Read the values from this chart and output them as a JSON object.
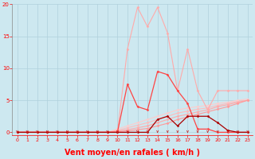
{
  "bg_color": "#cde8f0",
  "grid_color": "#b0d0dc",
  "xlabel": "Vent moyen/en rafales ( km/h )",
  "xlabel_color": "#ff0000",
  "xlabel_fontsize": 7,
  "tick_color": "#ff0000",
  "ylim": [
    -0.5,
    20
  ],
  "xlim": [
    -0.5,
    23.5
  ],
  "yticks": [
    0,
    5,
    10,
    15,
    20
  ],
  "xticks": [
    0,
    1,
    2,
    3,
    4,
    5,
    6,
    7,
    8,
    9,
    10,
    11,
    12,
    13,
    14,
    15,
    16,
    17,
    18,
    19,
    20,
    21,
    22,
    23
  ],
  "fan1": {
    "x": [
      0,
      1,
      2,
      3,
      4,
      5,
      6,
      7,
      8,
      9,
      10,
      11,
      12,
      13,
      14,
      15,
      16,
      17,
      18,
      19,
      20,
      21,
      22,
      23
    ],
    "y": [
      0,
      0,
      0,
      0,
      0,
      0,
      0,
      0,
      0,
      0,
      0.5,
      1.0,
      1.5,
      2.0,
      2.5,
      3.0,
      3.5,
      3.8,
      4.0,
      4.2,
      4.5,
      4.7,
      5.0,
      5.2
    ],
    "color": "#ffcccc",
    "lw": 0.8,
    "marker": "D",
    "ms": 1.5
  },
  "fan2": {
    "x": [
      0,
      1,
      2,
      3,
      4,
      5,
      6,
      7,
      8,
      9,
      10,
      11,
      12,
      13,
      14,
      15,
      16,
      17,
      18,
      19,
      20,
      21,
      22,
      23
    ],
    "y": [
      0,
      0,
      0,
      0,
      0,
      0,
      0,
      0,
      0,
      0,
      0.3,
      0.7,
      1.1,
      1.5,
      2.0,
      2.5,
      3.0,
      3.3,
      3.6,
      3.8,
      4.2,
      4.5,
      4.8,
      5.0
    ],
    "color": "#ffbbbb",
    "lw": 0.8,
    "marker": "D",
    "ms": 1.5
  },
  "fan3": {
    "x": [
      0,
      1,
      2,
      3,
      4,
      5,
      6,
      7,
      8,
      9,
      10,
      11,
      12,
      13,
      14,
      15,
      16,
      17,
      18,
      19,
      20,
      21,
      22,
      23
    ],
    "y": [
      0,
      0,
      0,
      0,
      0,
      0,
      0,
      0,
      0,
      0,
      0.2,
      0.4,
      0.7,
      1.0,
      1.5,
      2.0,
      2.5,
      2.8,
      3.2,
      3.5,
      4.0,
      4.3,
      4.7,
      5.0
    ],
    "color": "#ffaaaa",
    "lw": 0.8,
    "marker": "D",
    "ms": 1.5
  },
  "fan4": {
    "x": [
      0,
      1,
      2,
      3,
      4,
      5,
      6,
      7,
      8,
      9,
      10,
      11,
      12,
      13,
      14,
      15,
      16,
      17,
      18,
      19,
      20,
      21,
      22,
      23
    ],
    "y": [
      0,
      0,
      0,
      0,
      0,
      0,
      0,
      0,
      0,
      0,
      0.1,
      0.2,
      0.4,
      0.6,
      1.0,
      1.4,
      2.0,
      2.4,
      2.8,
      3.2,
      3.6,
      4.0,
      4.5,
      5.0
    ],
    "color": "#ff9999",
    "lw": 0.8,
    "marker": "D",
    "ms": 1.5
  },
  "peak_light": {
    "x": [
      0,
      1,
      2,
      3,
      4,
      5,
      6,
      7,
      8,
      9,
      10,
      11,
      12,
      13,
      14,
      15,
      16,
      17,
      18,
      19,
      20,
      21,
      22,
      23
    ],
    "y": [
      0,
      0,
      0,
      0,
      0,
      0,
      0,
      0,
      0,
      0,
      0,
      13,
      19.5,
      16.5,
      19.5,
      15.5,
      6.5,
      13.0,
      6.5,
      3.5,
      6.5,
      6.5,
      6.5,
      6.5
    ],
    "color": "#ffaaaa",
    "lw": 0.8,
    "marker": "D",
    "ms": 1.5
  },
  "peak_med": {
    "x": [
      0,
      1,
      2,
      3,
      4,
      5,
      6,
      7,
      8,
      9,
      10,
      11,
      12,
      13,
      14,
      15,
      16,
      17,
      18,
      19,
      20,
      21,
      22,
      23
    ],
    "y": [
      0,
      0,
      0,
      0,
      0,
      0,
      0,
      0,
      0,
      0,
      0,
      7.5,
      4.0,
      3.5,
      9.5,
      9.0,
      6.5,
      4.5,
      0.5,
      0.5,
      0,
      0,
      0,
      0
    ],
    "color": "#ff4444",
    "lw": 0.9,
    "marker": "D",
    "ms": 1.5
  },
  "peak_dark": {
    "x": [
      0,
      1,
      2,
      3,
      4,
      5,
      6,
      7,
      8,
      9,
      10,
      11,
      12,
      13,
      14,
      15,
      16,
      17,
      18,
      19,
      20,
      21,
      22,
      23
    ],
    "y": [
      0,
      0,
      0,
      0,
      0,
      0,
      0,
      0,
      0,
      0,
      0,
      0,
      0,
      0,
      2.0,
      2.5,
      1.0,
      2.5,
      2.5,
      2.5,
      1.5,
      0.3,
      0,
      0
    ],
    "color": "#aa0000",
    "lw": 0.9,
    "marker": "D",
    "ms": 1.5
  }
}
